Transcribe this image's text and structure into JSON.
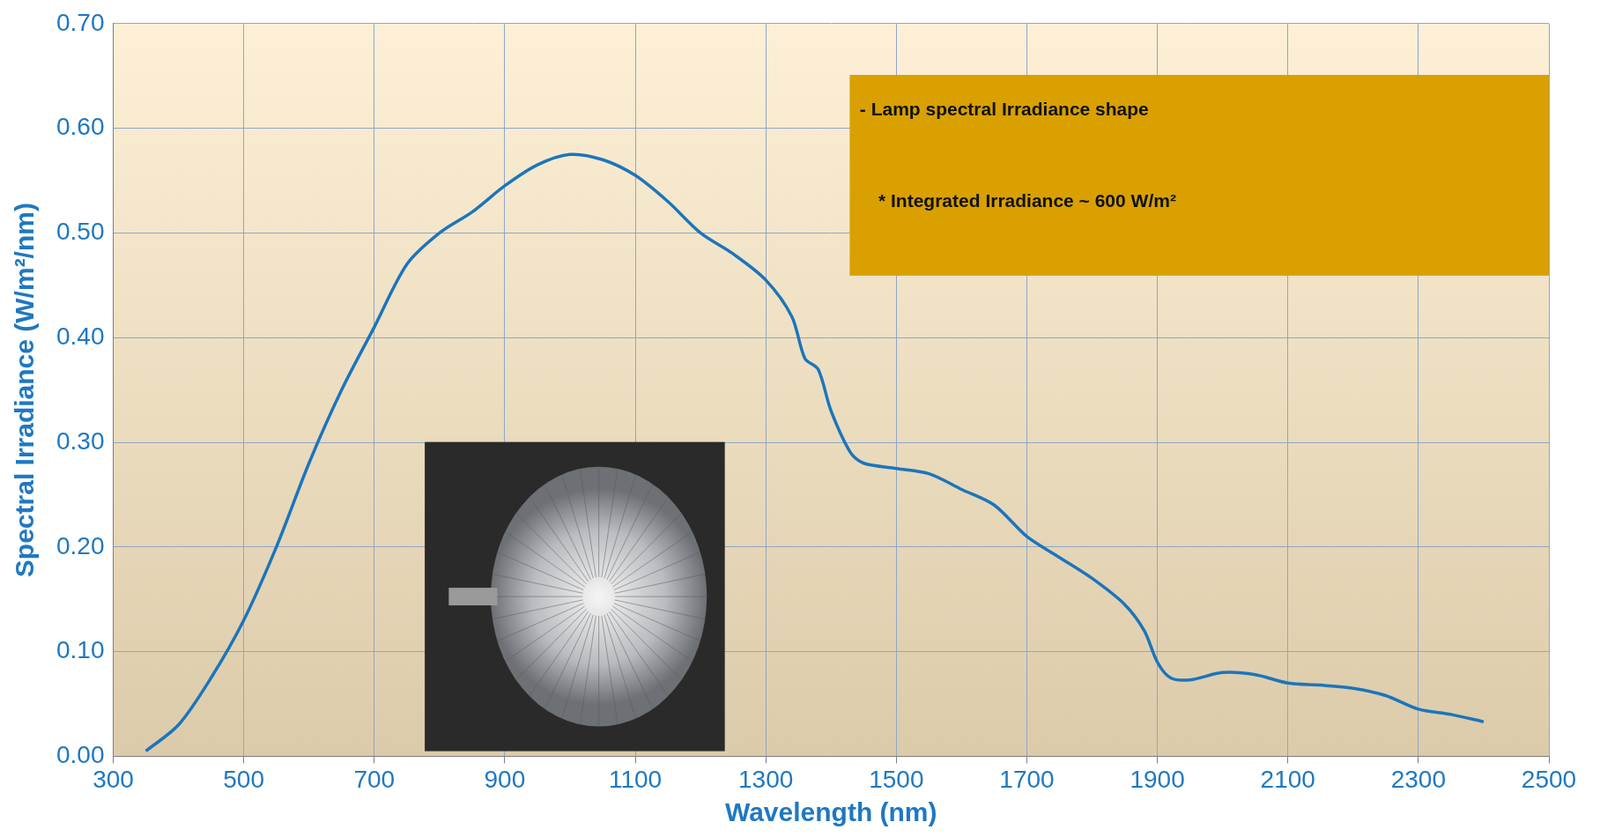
{
  "chart_data": {
    "type": "line",
    "x_label": "Wavelength (nm)",
    "y_label": "Spectral Irradiance (W/m²/nm)",
    "annotations": [
      "- Lamp spectral Irradiance shape",
      "* Integrated Irradiance ~ 600 W/m²"
    ],
    "x": [
      350,
      400,
      450,
      500,
      550,
      600,
      650,
      700,
      750,
      800,
      850,
      900,
      950,
      1000,
      1050,
      1100,
      1150,
      1200,
      1250,
      1300,
      1340,
      1360,
      1380,
      1400,
      1430,
      1450,
      1500,
      1550,
      1600,
      1650,
      1700,
      1750,
      1800,
      1850,
      1880,
      1900,
      1920,
      1950,
      2000,
      2050,
      2100,
      2150,
      2200,
      2250,
      2300,
      2350,
      2400
    ],
    "values": [
      0.005,
      0.03,
      0.075,
      0.13,
      0.2,
      0.28,
      0.35,
      0.41,
      0.47,
      0.5,
      0.52,
      0.545,
      0.565,
      0.575,
      0.57,
      0.555,
      0.53,
      0.5,
      0.48,
      0.455,
      0.42,
      0.38,
      0.37,
      0.33,
      0.29,
      0.28,
      0.275,
      0.27,
      0.255,
      0.24,
      0.21,
      0.19,
      0.17,
      0.145,
      0.12,
      0.09,
      0.075,
      0.073,
      0.08,
      0.078,
      0.07,
      0.068,
      0.065,
      0.058,
      0.045,
      0.04,
      0.033
    ],
    "color": "#1b75bc",
    "xlim": [
      300,
      2500
    ],
    "xticks": [
      300,
      500,
      700,
      900,
      1100,
      1300,
      1500,
      1700,
      1900,
      2100,
      2300,
      2500
    ],
    "ylim": [
      0,
      0.7
    ],
    "yticks": [
      {
        "value": 0,
        "label": "0.00"
      },
      {
        "value": 0.1,
        "label": "0.10"
      },
      {
        "value": 0.2,
        "label": "0.20"
      },
      {
        "value": 0.3,
        "label": "0.30"
      },
      {
        "value": 0.4,
        "label": "0.40"
      },
      {
        "value": 0.5,
        "label": "0.50"
      },
      {
        "value": 0.6,
        "label": "0.60"
      },
      {
        "value": 0.7,
        "label": "0.70"
      }
    ],
    "grid": true
  }
}
